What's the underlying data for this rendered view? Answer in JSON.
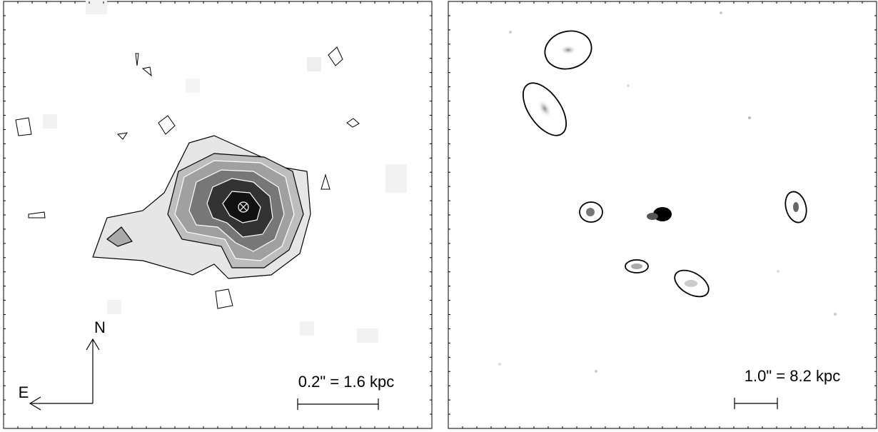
{
  "left_panel": {
    "compass": {
      "north": "N",
      "east": "E"
    },
    "scale_bar": "0.2\" = 1.6 kpc"
  },
  "right_panel": {
    "scale_bar": "1.0\" = 8.2 kpc"
  }
}
